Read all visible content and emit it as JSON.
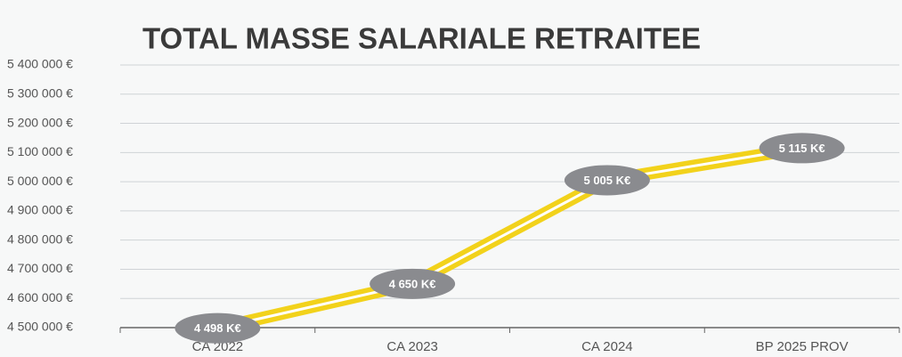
{
  "chart_data": {
    "type": "line",
    "title": "TOTAL MASSE SALARIALE RETRAITEE",
    "categories": [
      "CA 2022",
      "CA 2023",
      "CA 2024",
      "BP 2025 PROV"
    ],
    "series": [
      {
        "name": "Total masse salariale retraitée",
        "color": "#f2d21b",
        "values": [
          4498000,
          4650000,
          5005000,
          5115000
        ],
        "value_labels": [
          "4 498 K€",
          "4 650 K€",
          "5 005 K€",
          "5 115 K€"
        ]
      }
    ],
    "ylim": [
      4500000,
      5400000
    ],
    "yticks": [
      {
        "value": 4500000,
        "label": "4 500 000 €"
      },
      {
        "value": 4600000,
        "label": "4 600 000 €"
      },
      {
        "value": 4700000,
        "label": "4 700 000 €"
      },
      {
        "value": 4800000,
        "label": "4 800 000 €"
      },
      {
        "value": 4900000,
        "label": "4 900 000 €"
      },
      {
        "value": 5000000,
        "label": "5 000 000 €"
      },
      {
        "value": 5100000,
        "label": "5 100 000 €"
      },
      {
        "value": 5200000,
        "label": "5 200 000 €"
      },
      {
        "value": 5300000,
        "label": "5 300 000 €"
      },
      {
        "value": 5400000,
        "label": "5 400 000 €"
      }
    ],
    "grid": true
  }
}
